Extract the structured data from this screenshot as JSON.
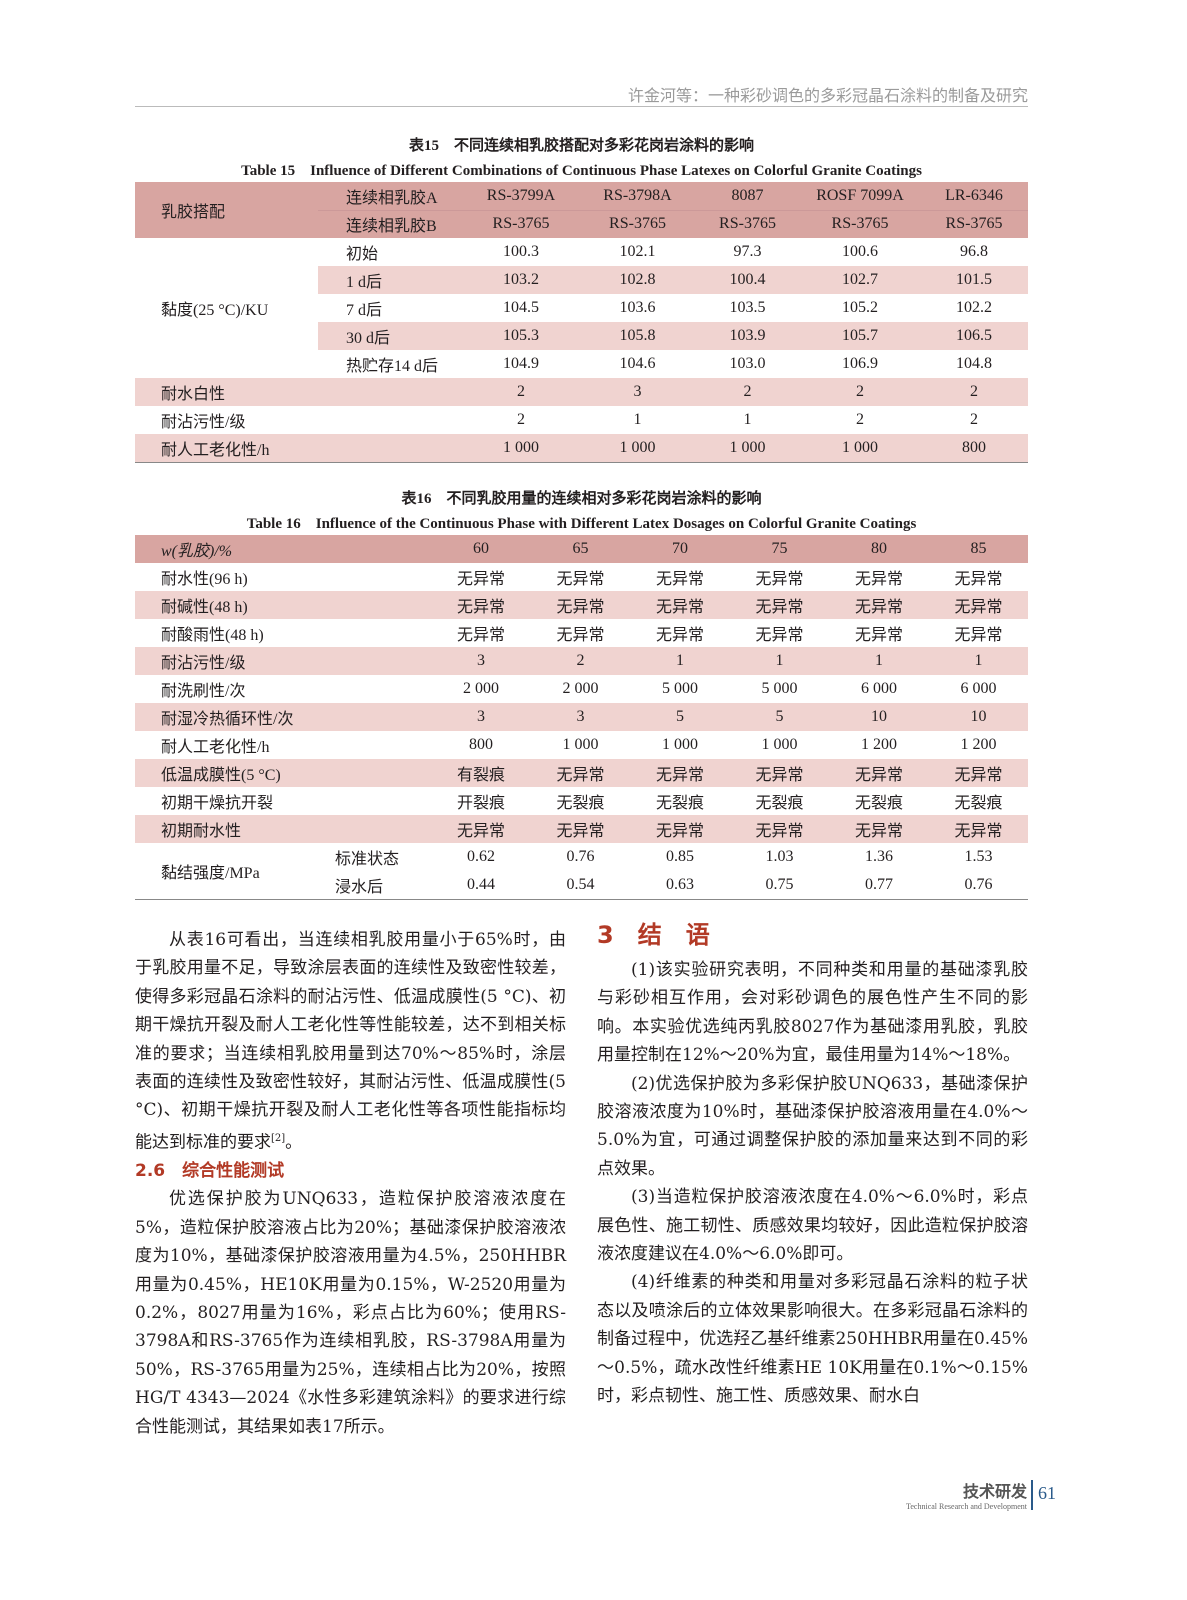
{
  "header": {
    "running_title": "许金河等：一种彩砂调色的多彩冠晶石涂料的制备及研究"
  },
  "table15": {
    "caption_cn": "表15　不同连续相乳胶搭配对多彩花岗岩涂料的影响",
    "caption_en": "Table 15　Influence of Different Combinations of Continuous Phase Latexes on Colorful Granite Coatings",
    "group_label": "乳胶搭配",
    "row_a_label": "连续相乳胶A",
    "row_a": [
      "RS-3799A",
      "RS-3798A",
      "8087",
      "ROSF 7099A",
      "LR-6346"
    ],
    "row_b_label": "连续相乳胶B",
    "row_b": [
      "RS-3765",
      "RS-3765",
      "RS-3765",
      "RS-3765",
      "RS-3765"
    ],
    "viscosity_label": "黏度(25 °C)/KU",
    "viscosity_rows": [
      {
        "label": "初始",
        "values": [
          "100.3",
          "102.1",
          "97.3",
          "100.6",
          "96.8"
        ]
      },
      {
        "label": "1 d后",
        "values": [
          "103.2",
          "102.8",
          "100.4",
          "102.7",
          "101.5"
        ]
      },
      {
        "label": "7 d后",
        "values": [
          "104.5",
          "103.6",
          "103.5",
          "105.2",
          "102.2"
        ]
      },
      {
        "label": "30 d后",
        "values": [
          "105.3",
          "105.8",
          "103.9",
          "105.7",
          "106.5"
        ]
      },
      {
        "label": "热贮存14 d后",
        "values": [
          "104.9",
          "104.6",
          "103.0",
          "106.9",
          "104.8"
        ]
      }
    ],
    "other_rows": [
      {
        "label": "耐水白性",
        "values": [
          "2",
          "3",
          "2",
          "2",
          "2"
        ]
      },
      {
        "label": "耐沾污性/级",
        "values": [
          "2",
          "1",
          "1",
          "2",
          "2"
        ]
      },
      {
        "label": "耐人工老化性/h",
        "values": [
          "1 000",
          "1 000",
          "1 000",
          "1 000",
          "800"
        ]
      }
    ]
  },
  "table16": {
    "caption_cn": "表16　不同乳胶用量的连续相对多彩花岗岩涂料的影响",
    "caption_en": "Table 16　Influence of the Continuous Phase with Different Latex Dosages on Colorful Granite Coatings",
    "head_label": "w(乳胶)/%",
    "head": [
      "60",
      "65",
      "70",
      "75",
      "80",
      "85"
    ],
    "rows": [
      {
        "label": "耐水性(96 h)",
        "values": [
          "无异常",
          "无异常",
          "无异常",
          "无异常",
          "无异常",
          "无异常"
        ]
      },
      {
        "label": "耐碱性(48 h)",
        "values": [
          "无异常",
          "无异常",
          "无异常",
          "无异常",
          "无异常",
          "无异常"
        ]
      },
      {
        "label": "耐酸雨性(48 h)",
        "values": [
          "无异常",
          "无异常",
          "无异常",
          "无异常",
          "无异常",
          "无异常"
        ]
      },
      {
        "label": "耐沾污性/级",
        "values": [
          "3",
          "2",
          "1",
          "1",
          "1",
          "1"
        ]
      },
      {
        "label": "耐洗刷性/次",
        "values": [
          "2 000",
          "2 000",
          "5 000",
          "5 000",
          "6 000",
          "6 000"
        ]
      },
      {
        "label": "耐湿冷热循环性/次",
        "values": [
          "3",
          "3",
          "5",
          "5",
          "10",
          "10"
        ]
      },
      {
        "label": "耐人工老化性/h",
        "values": [
          "800",
          "1 000",
          "1 000",
          "1 000",
          "1 200",
          "1 200"
        ]
      },
      {
        "label": "低温成膜性(5 °C)",
        "values": [
          "有裂痕",
          "无异常",
          "无异常",
          "无异常",
          "无异常",
          "无异常"
        ]
      },
      {
        "label": "初期干燥抗开裂",
        "values": [
          "开裂痕",
          "无裂痕",
          "无裂痕",
          "无裂痕",
          "无裂痕",
          "无裂痕"
        ]
      },
      {
        "label": "初期耐水性",
        "values": [
          "无异常",
          "无异常",
          "无异常",
          "无异常",
          "无异常",
          "无异常"
        ]
      }
    ],
    "bond_label": "黏结强度/MPa",
    "bond_rows": [
      {
        "label": "标准状态",
        "values": [
          "0.62",
          "0.76",
          "0.85",
          "1.03",
          "1.36",
          "1.53"
        ]
      },
      {
        "label": "浸水后",
        "values": [
          "0.44",
          "0.54",
          "0.63",
          "0.75",
          "0.77",
          "0.76"
        ]
      }
    ]
  },
  "left": {
    "p1": "从表16可看出，当连续相乳胶用量小于65%时，由于乳胶用量不足，导致涂层表面的连续性及致密性较差，使得多彩冠晶石涂料的耐沾污性、低温成膜性(5 °C)、初期干燥抗开裂及耐人工老化性等性能较差，达不到相关标准的要求；当连续相乳胶用量到达70%～85%时，涂层表面的连续性及致密性较好，其耐沾污性、低温成膜性(5 °C)、初期干燥抗开裂及耐人工老化性等各项性能指标均能达到标准的要求",
    "p1_ref": "[2]",
    "p1_end": "。",
    "sec_num": "2.6",
    "sec_title": "综合性能测试",
    "p2": "优选保护胶为UNQ633，造粒保护胶溶液浓度在5%，造粒保护胶溶液占比为20%；基础漆保护胶溶液浓度为10%，基础漆保护胶溶液用量为4.5%，250HHBR用量为0.45%，HE10K用量为0.15%，W-2520用量为0.2%，8027用量为16%，彩点占比为60%；使用RS-3798A和RS-3765作为连续相乳胶，RS-3798A用量为50%，RS-3765用量为25%，连续相占比为20%，按照HG/T 4343—2024《水性多彩建筑涂料》的要求进行综合性能测试，其结果如表17所示。"
  },
  "right": {
    "sec_num": "3",
    "sec_title": "结　语",
    "paras": [
      "(1)该实验研究表明，不同种类和用量的基础漆乳胶与彩砂相互作用，会对彩砂调色的展色性产生不同的影响。本实验优选纯丙乳胶8027作为基础漆用乳胶，乳胶用量控制在12%～20%为宜，最佳用量为14%～18%。",
      "(2)优选保护胶为多彩保护胶UNQ633，基础漆保护胶溶液浓度为10%时，基础漆保护胶溶液用量在4.0%～5.0%为宜，可通过调整保护胶的添加量来达到不同的彩点效果。",
      "(3)当造粒保护胶溶液浓度在4.0%～6.0%时，彩点展色性、施工韧性、质感效果均较好，因此造粒保护胶溶液浓度建议在4.0%～6.0%即可。",
      "(4)纤维素的种类和用量对多彩冠晶石涂料的粒子状态以及喷涂后的立体效果影响很大。在多彩冠晶石涂料的制备过程中，优选羟乙基纤维素250HHBR用量在0.45%～0.5%，疏水改性纤维素HE 10K用量在0.1%～0.15%时，彩点韧性、施工性、质感效果、耐水白"
    ]
  },
  "footer": {
    "section_cn": "技术研发",
    "section_en": "Technical Research and Development",
    "page": "61"
  },
  "colors": {
    "header_row": "#d8a5a1",
    "stripe_row": "#f0d3d0",
    "heading_red": "#b23a26",
    "footer_blue": "#2a5a8a"
  }
}
